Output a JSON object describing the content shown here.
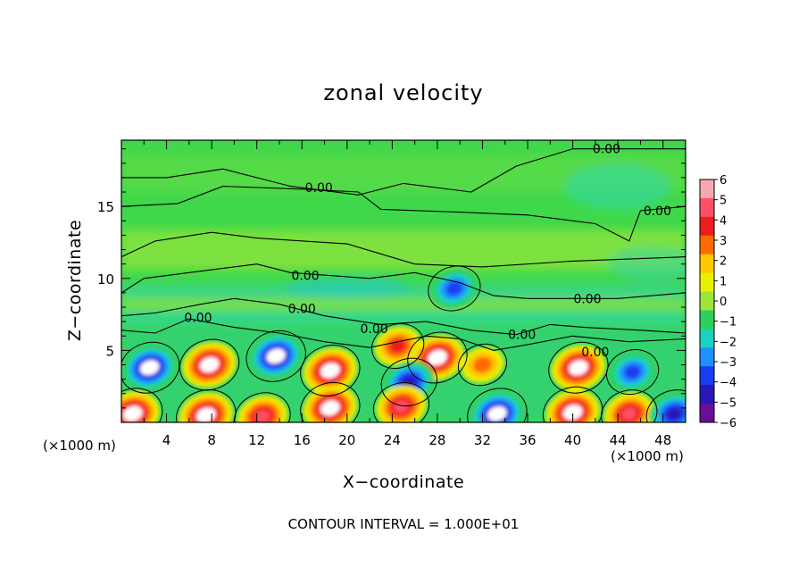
{
  "chart_data": {
    "type": "heatmap",
    "title": "zonal velocity",
    "xlabel": "X−coordinate",
    "ylabel": "Z−coordinate",
    "x_unit": "(×1000 m)",
    "y_unit": "(×1000 m)",
    "xlim": [
      0,
      50
    ],
    "ylim": [
      0,
      19.6
    ],
    "xticks": [
      4,
      8,
      12,
      16,
      20,
      24,
      28,
      32,
      36,
      40,
      44,
      48
    ],
    "yticks": [
      5,
      10,
      15
    ],
    "colorbar": {
      "ticks": [
        6,
        5,
        4,
        3,
        2,
        1,
        0,
        -1,
        -2,
        -3,
        -4,
        -5,
        -6
      ],
      "tick_labels": [
        "6",
        "5",
        "4",
        "3",
        "2",
        "1",
        "0",
        "−1",
        "−2",
        "−3",
        "−4",
        "−5",
        "−6"
      ],
      "colors": [
        "#f5a8b0",
        "#ff5066",
        "#ee1c1c",
        "#ff6a00",
        "#ffc800",
        "#e8f000",
        "#9ce43a",
        "#2dd05a",
        "#1ad2c0",
        "#1e90ff",
        "#1a3cf0",
        "#2818b8",
        "#6a0e9a"
      ],
      "range": [
        -6,
        6
      ]
    },
    "contour_interval_label": "CONTOUR INTERVAL = 1.000E+01",
    "contour_level_label": "0.00",
    "contour_label_positions": [
      {
        "x": 43,
        "z": 19.0
      },
      {
        "x": 17.5,
        "z": 16.3
      },
      {
        "x": 47.5,
        "z": 14.7
      },
      {
        "x": 16.3,
        "z": 10.2
      },
      {
        "x": 16.0,
        "z": 7.9
      },
      {
        "x": 6.8,
        "z": 7.3
      },
      {
        "x": 22.4,
        "z": 6.5
      },
      {
        "x": 35.5,
        "z": 6.1
      },
      {
        "x": 41.3,
        "z": 8.6
      },
      {
        "x": 42.0,
        "z": 4.9
      }
    ],
    "features": [
      {
        "type": "vortex",
        "x": 2.5,
        "z": 3.8,
        "sign": "negative",
        "u": -6
      },
      {
        "type": "vortex",
        "x": 7.8,
        "z": 4.0,
        "sign": "positive",
        "u": 6
      },
      {
        "type": "vortex",
        "x": 13.7,
        "z": 4.6,
        "sign": "negative",
        "u": -6
      },
      {
        "type": "vortex",
        "x": 18.5,
        "z": 3.6,
        "sign": "positive",
        "u": 6
      },
      {
        "type": "vortex",
        "x": 24.5,
        "z": 5.3,
        "sign": "positive",
        "u": 4
      },
      {
        "type": "vortex",
        "x": 28.0,
        "z": 4.5,
        "sign": "positive",
        "u": 6
      },
      {
        "type": "vortex",
        "x": 25.5,
        "z": 2.8,
        "sign": "negative",
        "u": -5
      },
      {
        "type": "vortex",
        "x": 32.0,
        "z": 4.0,
        "sign": "positive",
        "u": 3
      },
      {
        "type": "vortex",
        "x": 40.5,
        "z": 3.8,
        "sign": "positive",
        "u": 6
      },
      {
        "type": "vortex",
        "x": 45.3,
        "z": 3.5,
        "sign": "negative",
        "u": -4
      },
      {
        "type": "vortex",
        "x": 29.5,
        "z": 9.3,
        "sign": "negative",
        "u": -4
      },
      {
        "type": "vortex",
        "x": 1.0,
        "z": 0.6,
        "sign": "positive",
        "u": 6
      },
      {
        "type": "vortex",
        "x": 7.5,
        "z": 0.5,
        "sign": "positive",
        "u": 6
      },
      {
        "type": "vortex",
        "x": 12.5,
        "z": 0.4,
        "sign": "positive",
        "u": 5
      },
      {
        "type": "vortex",
        "x": 18.5,
        "z": 1.0,
        "sign": "positive",
        "u": 6
      },
      {
        "type": "vortex",
        "x": 24.8,
        "z": 1.1,
        "sign": "positive",
        "u": 5
      },
      {
        "type": "vortex",
        "x": 33.3,
        "z": 0.6,
        "sign": "negative",
        "u": -6
      },
      {
        "type": "vortex",
        "x": 40.0,
        "z": 0.7,
        "sign": "positive",
        "u": 6
      },
      {
        "type": "vortex",
        "x": 45.0,
        "z": 0.6,
        "sign": "positive",
        "u": 5
      },
      {
        "type": "vortex",
        "x": 49.0,
        "z": 0.6,
        "sign": "negative",
        "u": -5
      }
    ]
  }
}
